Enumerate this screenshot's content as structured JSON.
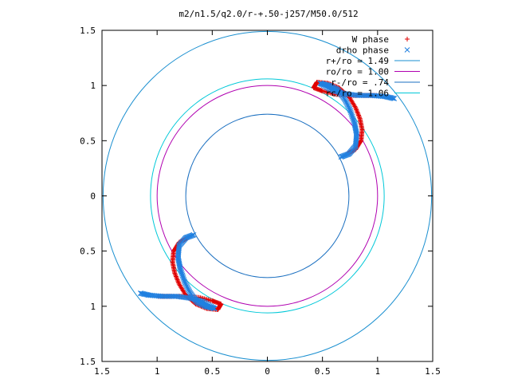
{
  "chart_data": {
    "type": "scatter",
    "title": "m2/n1.5/q2.0/r-+.50-j257/M50.0/512",
    "xlabel": "",
    "ylabel": "",
    "xlim": [
      -1.5,
      1.5
    ],
    "ylim": [
      -1.5,
      1.5
    ],
    "grid": false,
    "legend_position": "top-right",
    "x_tick_labels": [
      "1.5",
      "1",
      "0.5",
      "0",
      "0.5",
      "1",
      "1.5"
    ],
    "y_tick_labels": [
      "1.5",
      "1",
      "0.5",
      "0",
      "0.5",
      "1",
      "1.5"
    ],
    "circles": [
      {
        "name": "r+/ro = 1.49",
        "radius": 1.49,
        "color": "#1a8fd0"
      },
      {
        "name": "ro/ro = 1.00",
        "radius": 1.0,
        "color": "#b000b0"
      },
      {
        "name": "r-/ro = .74",
        "radius": 0.74,
        "color": "#1a6fc0"
      },
      {
        "name": "rc/ro = 1.06",
        "radius": 1.06,
        "color": "#00c8d8"
      }
    ],
    "series": [
      {
        "name": "W phase",
        "marker": "+",
        "color": "#e00000",
        "arms": [
          {
            "sign": 1,
            "points": [
              [
                0.45,
                1.03
              ],
              [
                0.55,
                1.02
              ],
              [
                0.65,
                0.98
              ],
              [
                0.74,
                0.9
              ],
              [
                0.8,
                0.8
              ],
              [
                0.84,
                0.7
              ],
              [
                0.86,
                0.6
              ],
              [
                0.85,
                0.5
              ],
              [
                0.8,
                0.42
              ],
              [
                0.72,
                0.38
              ]
            ]
          },
          {
            "sign": 1,
            "points": [
              [
                0.45,
                1.03
              ],
              [
                0.42,
                0.98
              ],
              [
                0.5,
                0.95
              ],
              [
                0.62,
                0.92
              ],
              [
                0.75,
                0.91
              ],
              [
                0.9,
                0.91
              ],
              [
                1.0,
                0.91
              ]
            ]
          }
        ]
      },
      {
        "name": "drho phase",
        "marker": "x",
        "color": "#2080e0",
        "arms": [
          {
            "sign": 1,
            "points": [
              [
                0.48,
                1.02
              ],
              [
                0.56,
                1.0
              ],
              [
                0.64,
                0.96
              ],
              [
                0.7,
                0.88
              ],
              [
                0.75,
                0.78
              ],
              [
                0.79,
                0.66
              ],
              [
                0.81,
                0.56
              ],
              [
                0.8,
                0.45
              ],
              [
                0.74,
                0.38
              ],
              [
                0.66,
                0.35
              ]
            ]
          },
          {
            "sign": 1,
            "points": [
              [
                0.48,
                1.02
              ],
              [
                0.58,
                0.96
              ],
              [
                0.68,
                0.93
              ],
              [
                0.82,
                0.91
              ],
              [
                0.95,
                0.91
              ],
              [
                1.07,
                0.9
              ],
              [
                1.16,
                0.88
              ]
            ]
          }
        ]
      }
    ]
  }
}
